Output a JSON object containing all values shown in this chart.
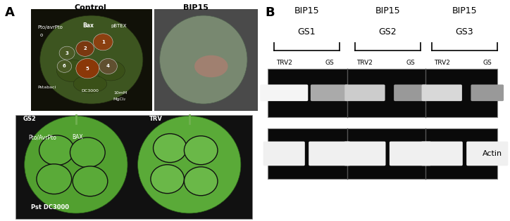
{
  "panel_A_label": "A",
  "panel_B_label": "B",
  "panel_A_top_labels": [
    "Control",
    "BIP15"
  ],
  "panel_B_groups": [
    "BIP15\nGS1",
    "BIP15\nGS2",
    "BIP15\nGS3"
  ],
  "panel_B_col_labels": [
    "TRV2",
    "GS",
    "TRV2",
    "GS",
    "TRV2",
    "GS"
  ],
  "panel_B_actin_label": "Actin",
  "figure_bg": "#ffffff",
  "gel_bg": "#0a0a0a",
  "gel_border": "#888888",
  "band_bright": "#f8f8f8",
  "band_dim": "#999999",
  "band_medium": "#cccccc",
  "actin_band": "#f0f0f0",
  "leaf_dark_bg": "#1a1a1a",
  "leaf_ctrl_color": "#4a6530",
  "leaf_bip_color": "#7a9060",
  "leaf_bip_bg": "#606060",
  "leaf_green_bright": "#5a9038",
  "leaf_green_medium": "#4a8028",
  "leaf_bottom_bg": "#e8e8e8",
  "lesion_brown": "#7a3010",
  "lesion_pink": "#9a5040"
}
